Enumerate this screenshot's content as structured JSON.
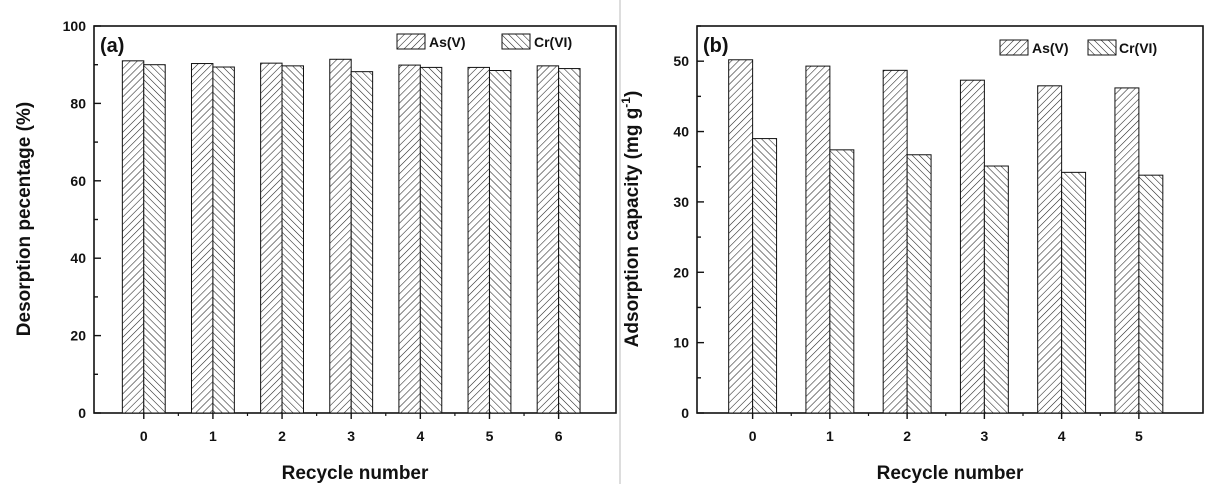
{
  "chart_data": [
    {
      "type": "bar",
      "panel_label": "(a)",
      "categories": [
        "0",
        "1",
        "2",
        "3",
        "4",
        "5",
        "6"
      ],
      "series": [
        {
          "name": "As(V)",
          "values": [
            91.0,
            90.3,
            90.4,
            91.4,
            89.9,
            89.3,
            89.7
          ]
        },
        {
          "name": "Cr(VI)",
          "values": [
            90.0,
            89.4,
            89.7,
            88.2,
            89.3,
            88.5,
            89.0
          ]
        }
      ],
      "xlabel": "Recycle number",
      "ylabel": "Desorption pecentage (%)",
      "ylim": [
        0,
        100
      ],
      "yticks": [
        0,
        20,
        40,
        60,
        80,
        100
      ],
      "legend": "top-right",
      "grid": false
    },
    {
      "type": "bar",
      "panel_label": "(b)",
      "categories": [
        "0",
        "1",
        "2",
        "3",
        "4",
        "5"
      ],
      "series": [
        {
          "name": "As(V)",
          "values": [
            50.2,
            49.3,
            48.7,
            47.3,
            46.5,
            46.2
          ]
        },
        {
          "name": "Cr(VI)",
          "values": [
            39.0,
            37.4,
            36.7,
            35.1,
            34.2,
            33.8
          ]
        }
      ],
      "xlabel": "Recycle number",
      "ylabel": "Adsorption capacity (mg g",
      "ylabel_sup": "-1",
      "ylabel_end": ")",
      "ylim": [
        0,
        55
      ],
      "yticks": [
        0,
        10,
        20,
        30,
        40,
        50
      ],
      "legend": "top-right",
      "grid": false
    }
  ]
}
